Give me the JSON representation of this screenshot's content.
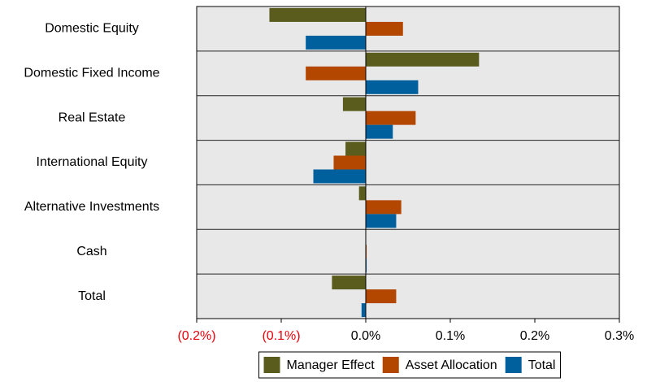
{
  "chart_data": {
    "type": "hbar",
    "categories": [
      "Domestic Equity",
      "Domestic Fixed Income",
      "Real Estate",
      "International Equity",
      "Alternative Investments",
      "Cash",
      "Total"
    ],
    "series": [
      {
        "name": "Manager Effect",
        "color": "#5a5c1e",
        "values": [
          -0.114,
          0.134,
          -0.027,
          -0.024,
          -0.008,
          0,
          -0.04
        ]
      },
      {
        "name": "Asset Allocation",
        "color": "#b34700",
        "values": [
          0.044,
          -0.071,
          0.059,
          -0.038,
          0.042,
          0.001,
          0.036
        ]
      },
      {
        "name": "Total",
        "color": "#00609e",
        "values": [
          -0.071,
          0.062,
          0.032,
          -0.062,
          0.036,
          0.001,
          -0.005
        ]
      }
    ],
    "xlim": [
      -0.2,
      0.3
    ],
    "xticks": [
      {
        "value": -0.2,
        "label": "(0.2%)"
      },
      {
        "value": -0.1,
        "label": "(0.1%)"
      },
      {
        "value": 0,
        "label": "0.0%"
      },
      {
        "value": 0.1,
        "label": "0.1%"
      },
      {
        "value": 0.2,
        "label": "0.2%"
      },
      {
        "value": 0.3,
        "label": "0.3%"
      }
    ],
    "negative_tick_color": "#e8000b",
    "plot_background": "#e8e8e8",
    "legend": "bottom"
  }
}
